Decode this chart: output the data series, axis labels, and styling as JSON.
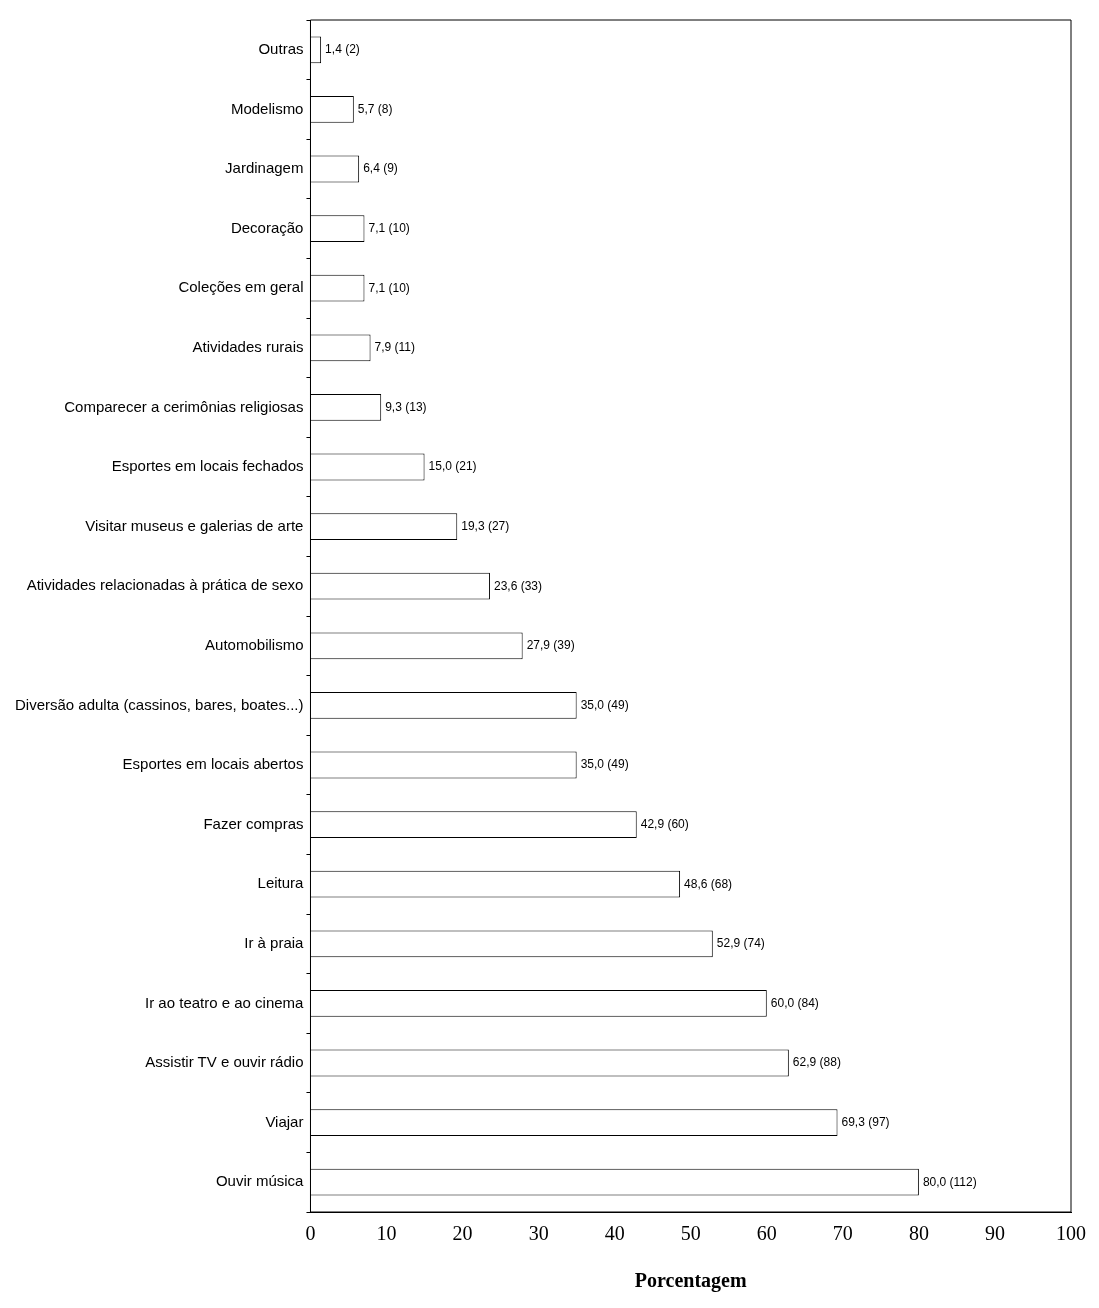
{
  "chart_data": {
    "type": "bar",
    "orientation": "horizontal",
    "xlabel": "Porcentagem",
    "categories": [
      "Outras",
      "Modelismo",
      "Jardinagem",
      "Decoração",
      "Coleções em geral",
      "Atividades rurais",
      "Comparecer a cerimônias religiosas",
      "Esportes em locais fechados",
      "Visitar museus e galerias de arte",
      "Atividades relacionadas à prática de sexo",
      "Automobilismo",
      "Diversão adulta (cassinos, bares, boates...)",
      "Esportes em locais abertos",
      "Fazer compras",
      "Leitura",
      "Ir à praia",
      "Ir ao teatro e ao cinema",
      "Assistir TV e ouvir rádio",
      "Viajar",
      "Ouvir música"
    ],
    "values": [
      1.4,
      5.7,
      6.4,
      7.1,
      7.1,
      7.9,
      9.3,
      15.0,
      19.3,
      23.6,
      27.9,
      35.0,
      35.0,
      42.9,
      48.6,
      52.9,
      60.0,
      62.9,
      69.3,
      80.0
    ],
    "value_labels": [
      "1,4 (2)",
      "5,7 (8)",
      "6,4 (9)",
      "7,1 (10)",
      "7,1 (10)",
      "7,9 (11)",
      "9,3 (13)",
      "15,0 (21)",
      "19,3 (27)",
      "23,6 (33)",
      "27,9 (39)",
      "35,0 (49)",
      "35,0 (49)",
      "42,9 (60)",
      "48,6 (68)",
      "52,9 (74)",
      "60,0 (84)",
      "62,9 (88)",
      "69,3 (97)",
      "80,0 (112)"
    ],
    "color": "#ffffff",
    "xlim": [
      0,
      100
    ],
    "xticks": [
      0,
      10,
      20,
      30,
      40,
      50,
      60,
      70,
      80,
      90,
      100
    ],
    "grid": false,
    "legend": false
  }
}
